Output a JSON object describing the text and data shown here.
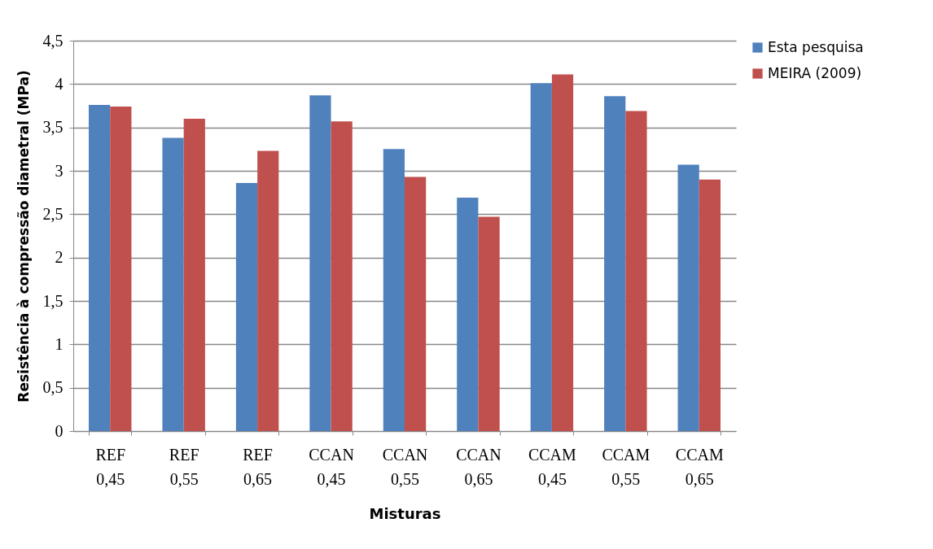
{
  "chart_data": {
    "type": "bar",
    "xlabel": "Misturas",
    "ylabel": "Resistência à compressão diametral (MPa)",
    "categories": [
      "REF 0,45",
      "REF 0,55",
      "REF 0,65",
      "CCAN 0,45",
      "CCAN 0,55",
      "CCAN 0,65",
      "CCAM 0,45",
      "CCAM 0,55",
      "CCAM 0,65"
    ],
    "series": [
      {
        "name": "Esta pesquisa",
        "color": "#4f81bd",
        "values": [
          3.76,
          3.38,
          2.86,
          3.87,
          3.25,
          2.69,
          4.01,
          3.86,
          3.07
        ]
      },
      {
        "name": "MEIRA (2009)",
        "color": "#c0504d",
        "values": [
          3.74,
          3.6,
          3.23,
          3.57,
          2.93,
          2.47,
          4.11,
          3.69,
          2.9
        ]
      }
    ],
    "ylim": [
      0,
      4.5
    ],
    "yticks": [
      0,
      {
        "value": 0.5,
        "label": "0,5"
      },
      1,
      {
        "value": 1.5,
        "label": "1,5"
      },
      2,
      {
        "value": 2.5,
        "label": "2,5"
      },
      3,
      {
        "value": 3.5,
        "label": "3,5"
      },
      4,
      {
        "value": 4.5,
        "label": "4,5"
      }
    ],
    "grid": "y",
    "legend": "right"
  }
}
